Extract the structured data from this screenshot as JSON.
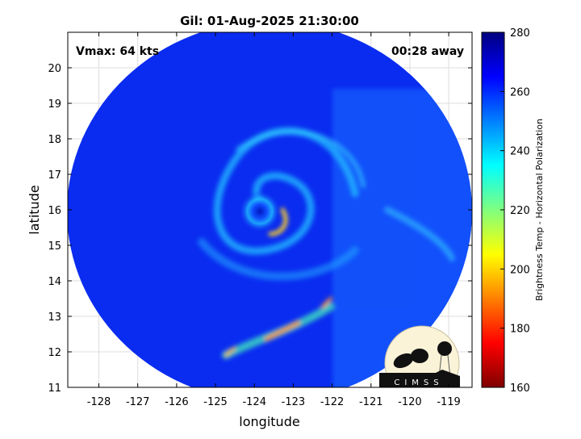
{
  "chart_data": {
    "type": "heatmap",
    "title": "Gil: 01-Aug-2025 21:30:00",
    "xlabel": "longitude",
    "ylabel": "latitude",
    "xlim": [
      -128.8,
      -118.4
    ],
    "ylim": [
      11,
      21
    ],
    "x_ticks": [
      "-128",
      "-127",
      "-126",
      "-125",
      "-124",
      "-123",
      "-122",
      "-121",
      "-120",
      "-119"
    ],
    "y_ticks": [
      "20",
      "19",
      "18",
      "17",
      "16",
      "15",
      "14",
      "13",
      "12",
      "11"
    ],
    "grid": true,
    "annotations": {
      "vmax": "Vmax: 64 kts",
      "time_offset": "00:28 away"
    },
    "storm_center": {
      "lon": -123.9,
      "lat": 15.9
    },
    "colorbar": {
      "label": "Brightness Temp - Horizontal Polarization",
      "range": [
        160,
        280
      ],
      "ticks": [
        "280",
        "260",
        "240",
        "220",
        "200",
        "180",
        "160"
      ],
      "colormap": "jet"
    }
  },
  "logo": {
    "text": "CIMSS"
  },
  "colors": {
    "background_scene": "#0a28f0",
    "cold": "#7f0000",
    "warm": "#00007f"
  }
}
